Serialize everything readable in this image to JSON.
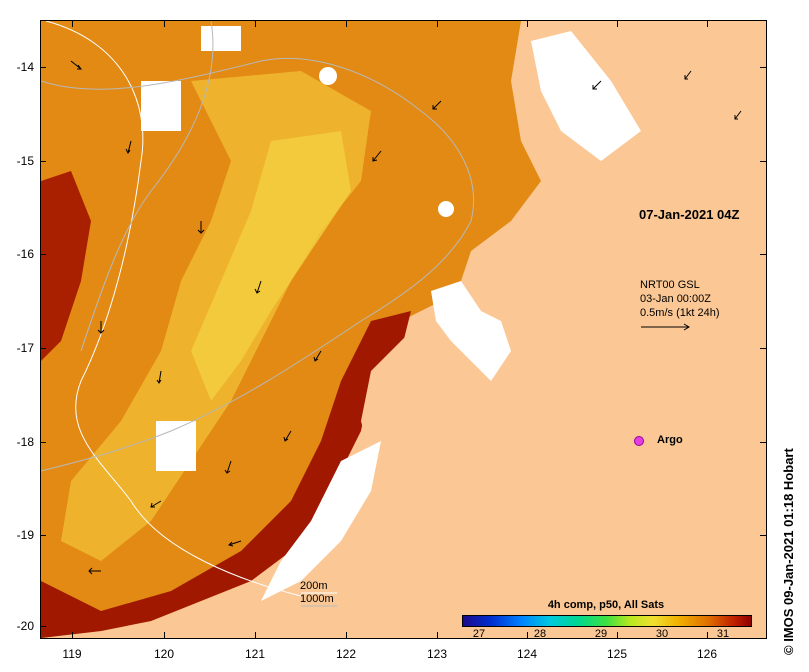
{
  "map": {
    "y_axis_labels": [
      "-14",
      "-15",
      "-16",
      "-17",
      "-18",
      "-19",
      "-20"
    ],
    "x_axis_labels": [
      "119",
      "120",
      "121",
      "122",
      "123",
      "124",
      "125",
      "126"
    ],
    "date_stamp": "07-Jan-2021 04Z",
    "current_legend": {
      "line1": "NRT00 GSL",
      "line2": "03-Jan 00:00Z",
      "line3": "0.5m/s (1kt 24h)"
    },
    "argo_label": "Argo",
    "contour_legend": {
      "line1": "200m",
      "line2": "1000m"
    },
    "colorbar": {
      "title": "4h comp, p50, All Sats",
      "ticks": [
        "27",
        "28",
        "29",
        "30",
        "31"
      ]
    },
    "credit": "© IMOS 09-Jan-2021 01:18 Hobart",
    "colors": {
      "land": "#fbc895",
      "sst_warm": "#e08a10",
      "sst_hot": "#a01800",
      "sst_cool": "#f0d030",
      "argo": "#e040e0"
    }
  }
}
